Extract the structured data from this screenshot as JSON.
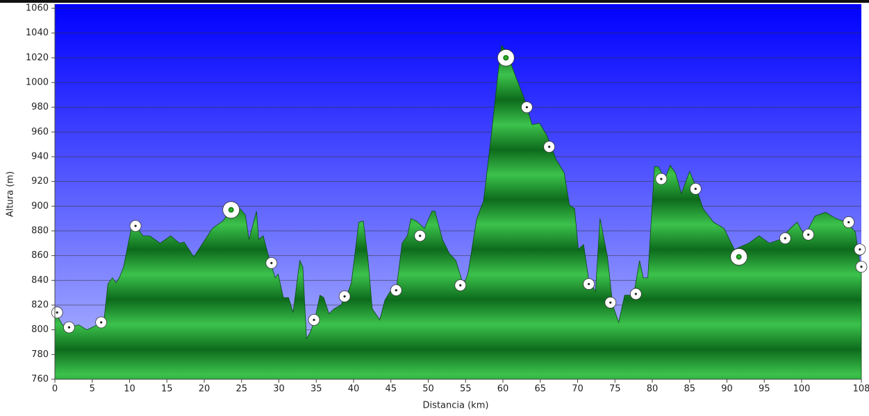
{
  "chart_data": {
    "type": "area",
    "x_label": "Distancia  (km)",
    "y_label": "Altura (m)",
    "xlim": [
      0,
      108
    ],
    "ylim": [
      760,
      1060
    ],
    "xticks": [
      0,
      5,
      10,
      15,
      20,
      25,
      30,
      35,
      40,
      45,
      50,
      55,
      60,
      65,
      70,
      75,
      80,
      85,
      90,
      95,
      100,
      108
    ],
    "yticks": [
      760,
      780,
      800,
      820,
      840,
      860,
      880,
      900,
      920,
      940,
      960,
      980,
      1000,
      1020,
      1040,
      1060
    ],
    "grid": true,
    "color": "#1f9a32",
    "x": [
      0,
      1.0,
      2.0,
      3.2,
      4.3,
      5.7,
      6.6,
      7.1,
      7.7,
      8.2,
      8.7,
      9.2,
      10.4,
      10.8,
      11.8,
      12.7,
      14.1,
      15.5,
      16.7,
      17.3,
      18.6,
      19.7,
      21.1,
      22.5,
      23.4,
      24.8,
      25.5,
      26.0,
      27.0,
      27.3,
      27.9,
      28.5,
      29.5,
      29.9,
      30.6,
      31.3,
      31.9,
      32.8,
      33.2,
      33.7,
      34.2,
      34.8,
      35.5,
      36.0,
      36.7,
      37.4,
      38.3,
      39.3,
      39.7,
      40.7,
      41.3,
      41.9,
      42.5,
      43.5,
      44.2,
      44.9,
      45.6,
      46.5,
      47.2,
      47.7,
      48.4,
      49.5,
      50.5,
      50.9,
      51.9,
      52.8,
      53.7,
      54.7,
      55.3,
      56.5,
      57.4,
      58.4,
      59.3,
      59.8,
      60.5,
      61.7,
      62.8,
      63.9,
      64.9,
      65.9,
      67.1,
      68.2,
      68.9,
      69.6,
      70.1,
      70.8,
      71.5,
      72.4,
      73.0,
      74.0,
      74.7,
      75.5,
      76.3,
      77.5,
      78.3,
      78.8,
      79.4,
      80.3,
      80.8,
      81.7,
      82.4,
      83.1,
      83.9,
      85.0,
      85.7,
      86.8,
      88.2,
      89.6,
      91.0,
      92.9,
      94.3,
      95.7,
      97.1,
      98.5,
      99.4,
      100.4,
      101.8,
      103.2,
      104.6,
      106.0,
      107.2,
      107.8,
      108
    ],
    "values": [
      815,
      804,
      802,
      804,
      800,
      804,
      809,
      837,
      842,
      838,
      843,
      851,
      887,
      884,
      876,
      876,
      870,
      876,
      870,
      871,
      859,
      869,
      882,
      888,
      896,
      898,
      893,
      873,
      896,
      873,
      876,
      862,
      842,
      845,
      826,
      826,
      814,
      856,
      851,
      793,
      798,
      808,
      828,
      826,
      813,
      817,
      820,
      831,
      838,
      887,
      888,
      859,
      817,
      808,
      824,
      831,
      827,
      870,
      876,
      890,
      888,
      882,
      896,
      896,
      873,
      862,
      856,
      836,
      845,
      890,
      904,
      955,
      1005,
      1030,
      1025,
      1005,
      988,
      966,
      967,
      957,
      938,
      927,
      901,
      898,
      865,
      869,
      840,
      831,
      890,
      859,
      820,
      806,
      828,
      828,
      856,
      842,
      842,
      932,
      932,
      922,
      933,
      927,
      910,
      928,
      918,
      898,
      887,
      882,
      865,
      870,
      876,
      870,
      873,
      882,
      887,
      876,
      892,
      895,
      890,
      887,
      879,
      854,
      851
    ],
    "markers": {
      "x": [
        0.3,
        1.9,
        6.2,
        10.8,
        29.0,
        34.7,
        38.8,
        45.7,
        48.9,
        54.3,
        63.2,
        66.2,
        71.5,
        74.4,
        77.8,
        81.2,
        85.8,
        97.8,
        100.9,
        106.3,
        107.8,
        108
      ],
      "values": [
        814,
        802,
        806,
        884,
        854,
        808,
        827,
        832,
        876,
        836,
        980,
        948,
        837,
        822,
        829,
        922,
        914,
        874,
        877,
        887,
        865,
        851
      ]
    },
    "major_markers": {
      "x": [
        23.6,
        60.4,
        91.6
      ],
      "values": [
        897,
        1020,
        859
      ]
    }
  }
}
